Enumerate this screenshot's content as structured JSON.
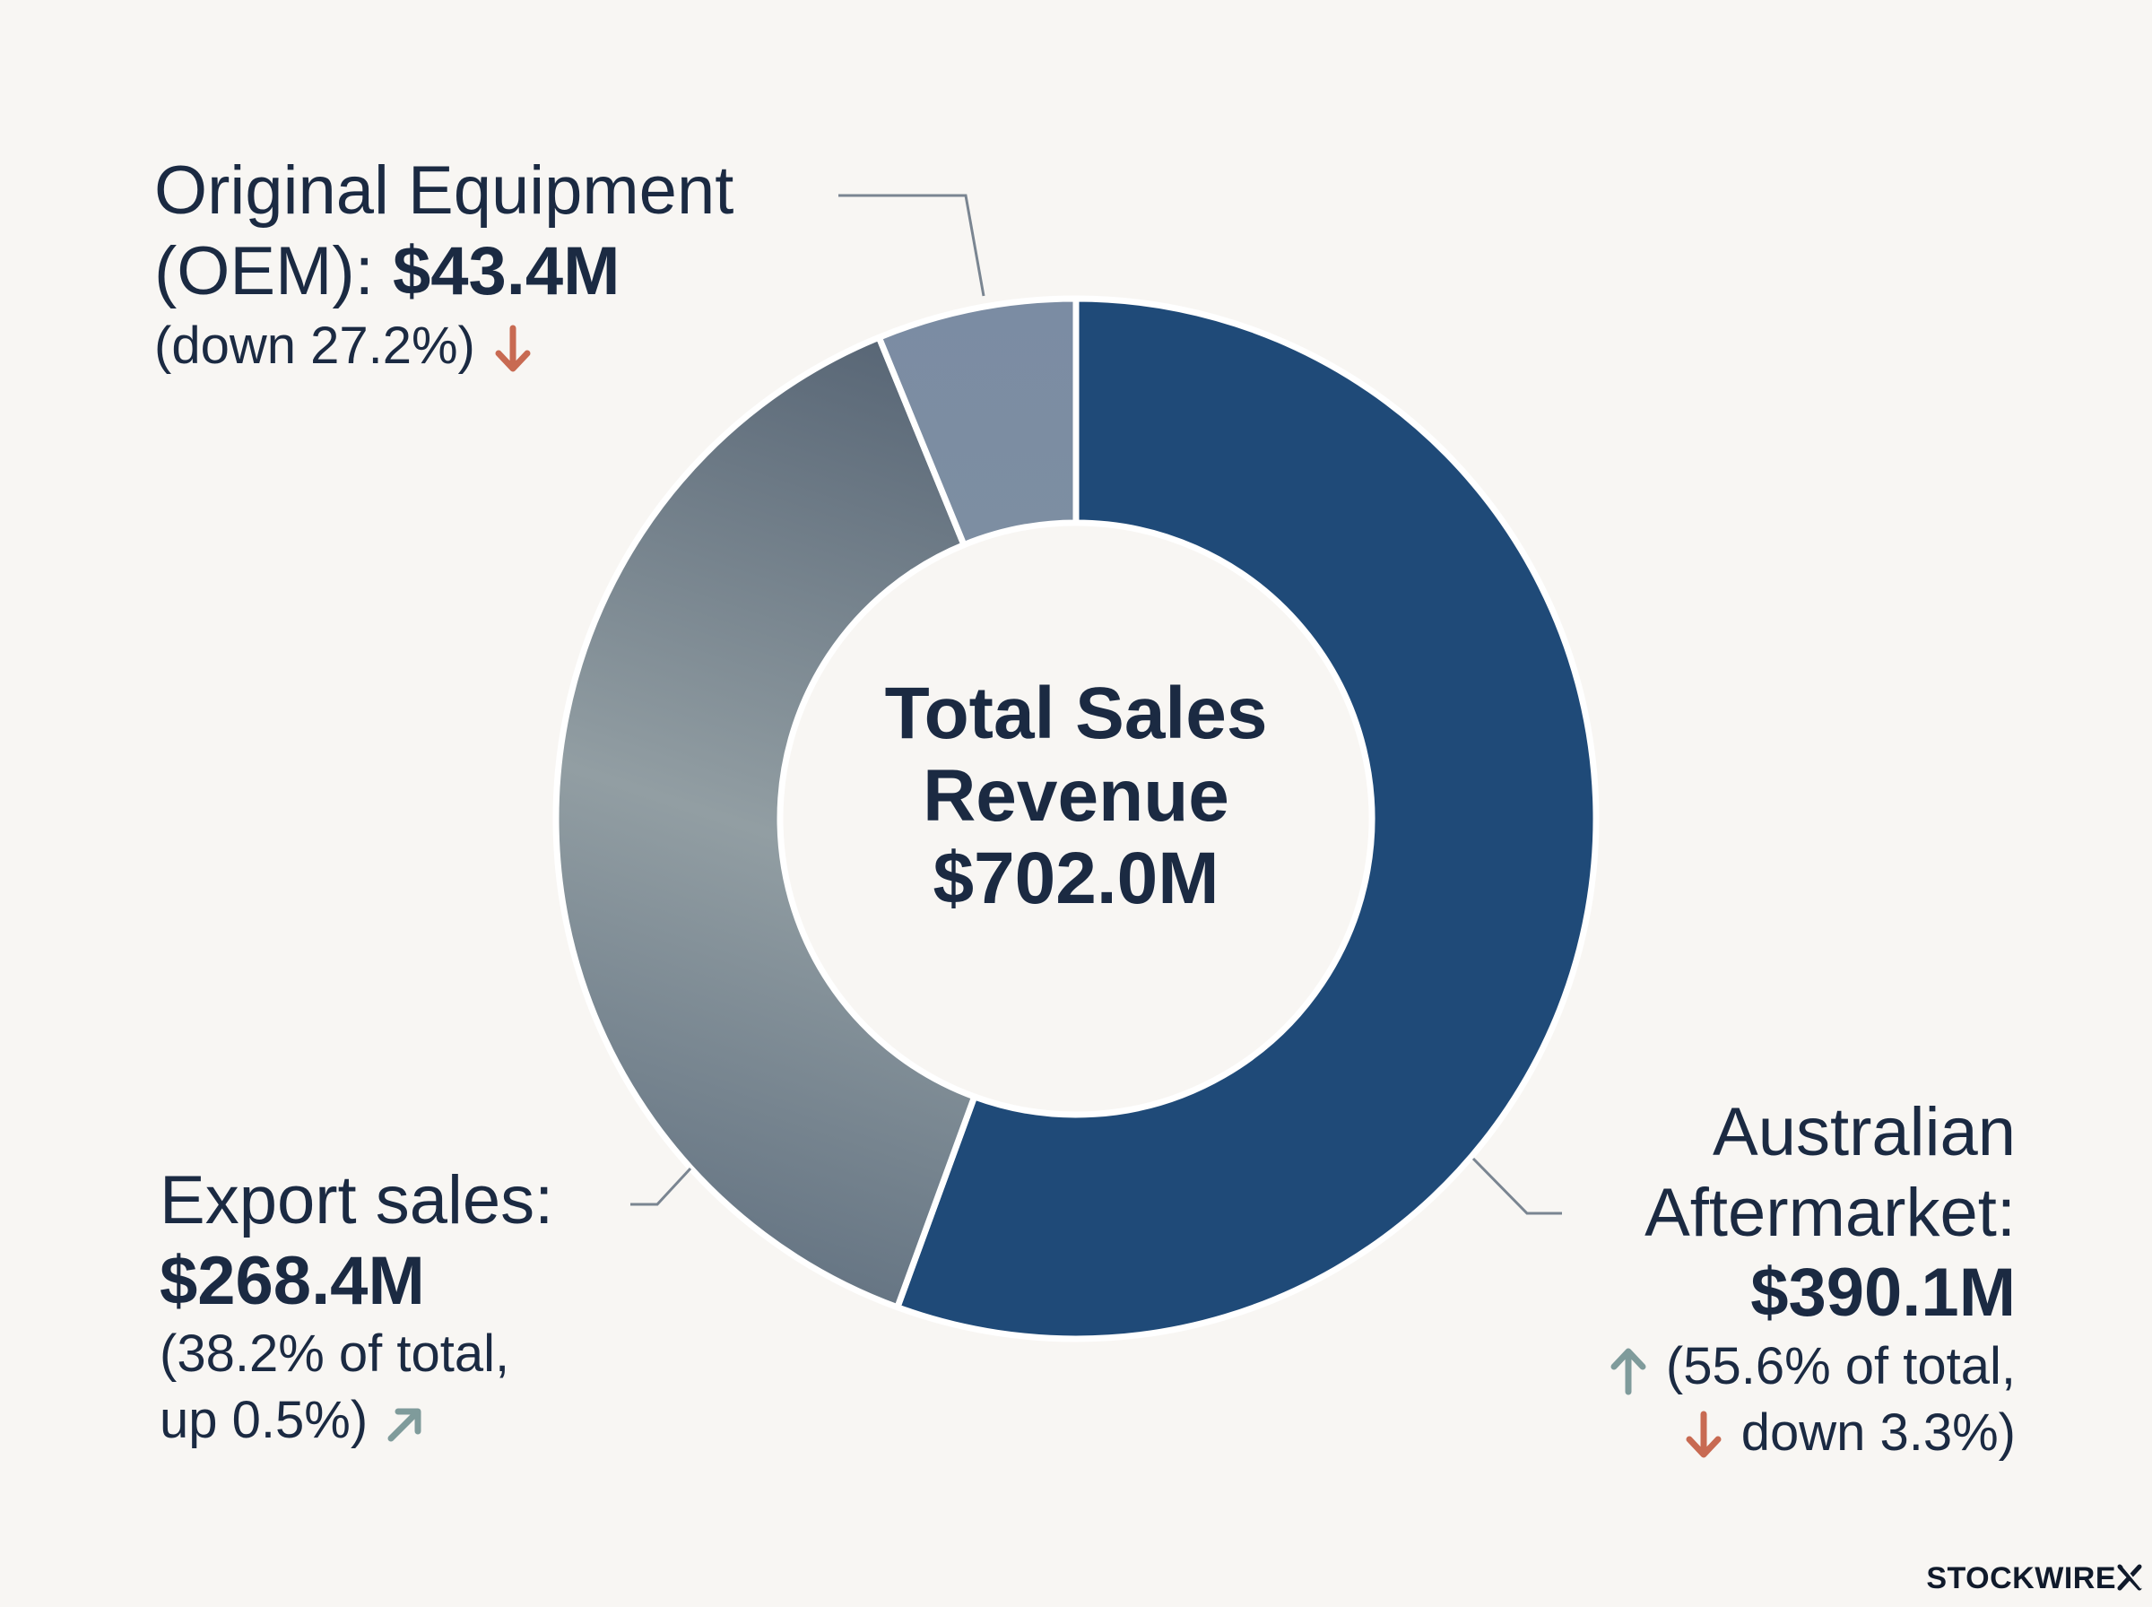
{
  "chart_data": {
    "type": "pie",
    "title": "",
    "center_label": {
      "line1": "Total Sales",
      "line2": "Revenue",
      "value": "$702.0M"
    },
    "slices": [
      {
        "name": "Australian Aftermarket",
        "value": 390.1,
        "color": "#1f4a78",
        "label_lines": [
          "Australian",
          "Aftermarket:"
        ],
        "value_label": "$390.1M",
        "detail_line1": "(55.6% of total,",
        "detail_line2": "down 3.3%)",
        "share_trend": "up",
        "change_trend": "down"
      },
      {
        "name": "Export sales",
        "value": 268.4,
        "color": "#7a8a97",
        "label_lines": [
          "Export sales:"
        ],
        "value_label": "$268.4M",
        "detail_line1": "(38.2% of total,",
        "detail_line2": "up 0.5%)",
        "change_trend": "up"
      },
      {
        "name": "Original Equipment (OEM)",
        "value": 43.4,
        "color": "#7a8ca3",
        "label_line1": "Original Equipment",
        "label_line2": "(OEM): ",
        "value_label": "$43.4M",
        "detail_line1": "(down 27.2%)",
        "change_trend": "down"
      }
    ],
    "start_angle_deg": 0,
    "direction": "clockwise",
    "colors": {
      "up_arrow": "#7f9b9b",
      "down_arrow": "#c86a52",
      "text": "#1b2a42"
    }
  },
  "brand": {
    "name": "STOCKWIRE"
  }
}
